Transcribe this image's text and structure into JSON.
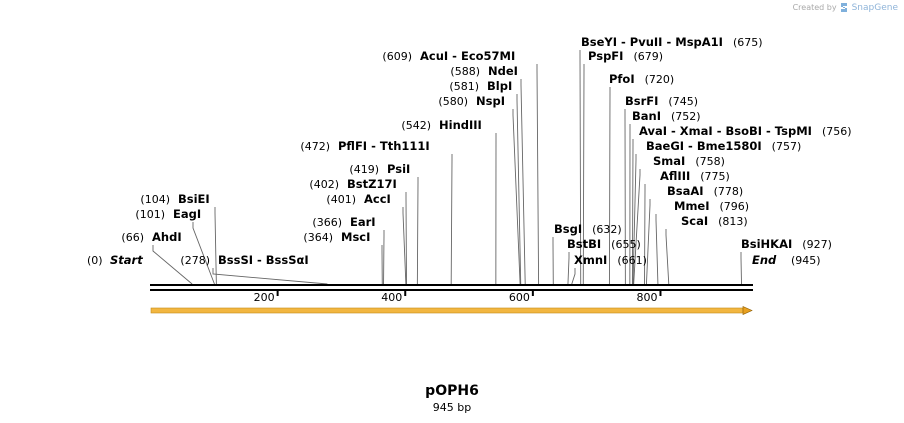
{
  "credit": {
    "created_by": "Created by",
    "brand": "SnapGene",
    "icon": "snapgene-logo-icon"
  },
  "sequence": {
    "name": "pOPH6",
    "length_label": "945 bp",
    "length": 945
  },
  "ends": {
    "start": {
      "label": "Start",
      "pos": "(0)"
    },
    "end": {
      "label": "End",
      "pos": "(945)"
    }
  },
  "ruler": {
    "ticks": [
      "200",
      "400",
      "600",
      "800"
    ]
  },
  "feature": {
    "color": "#e8a020",
    "direction": "forward"
  },
  "sites": [
    {
      "id": "ahdi",
      "label": "AhdI",
      "pos": "(66)",
      "loc": 66
    },
    {
      "id": "eagi",
      "label": "EagI",
      "pos": "(101)",
      "loc": 101
    },
    {
      "id": "bsiei",
      "label": "BsiEI",
      "pos": "(104)",
      "loc": 104
    },
    {
      "id": "bsssi",
      "label": "BssSI - BssSαI",
      "pos": "(278)",
      "loc": 278
    },
    {
      "id": "msci",
      "label": "MscI",
      "pos": "(364)",
      "loc": 364
    },
    {
      "id": "eari",
      "label": "EarI",
      "pos": "(366)",
      "loc": 366
    },
    {
      "id": "acci",
      "label": "AccI",
      "pos": "(401)",
      "loc": 401
    },
    {
      "id": "bstz17i",
      "label": "BstZ17I",
      "pos": "(402)",
      "loc": 402
    },
    {
      "id": "psii",
      "label": "PsiI",
      "pos": "(419)",
      "loc": 419
    },
    {
      "id": "pflfi",
      "label": "PflFI - Tth111I",
      "pos": "(472)",
      "loc": 472
    },
    {
      "id": "hindiii",
      "label": "HindIII",
      "pos": "(542)",
      "loc": 542
    },
    {
      "id": "nspi",
      "label": "NspI",
      "pos": "(580)",
      "loc": 580
    },
    {
      "id": "blpi",
      "label": "BlpI",
      "pos": "(581)",
      "loc": 581
    },
    {
      "id": "ndei",
      "label": "NdeI",
      "pos": "(588)",
      "loc": 588
    },
    {
      "id": "acui",
      "label": "AcuI - Eco57MI",
      "pos": "(609)",
      "loc": 609
    },
    {
      "id": "bsgi",
      "label": "BsgI",
      "pos": "(632)",
      "loc": 632
    },
    {
      "id": "bstbi",
      "label": "BstBI",
      "pos": "(655)",
      "loc": 655
    },
    {
      "id": "xmni",
      "label": "XmnI",
      "pos": "(661)",
      "loc": 661
    },
    {
      "id": "bseyi",
      "label": "BseYI - PvuII - MspA1I",
      "pos": "(675)",
      "loc": 675
    },
    {
      "id": "pspfi",
      "label": "PspFI",
      "pos": "(679)",
      "loc": 679
    },
    {
      "id": "pfoi",
      "label": "PfoI",
      "pos": "(720)",
      "loc": 720
    },
    {
      "id": "bsrfi",
      "label": "BsrFI",
      "pos": "(745)",
      "loc": 745
    },
    {
      "id": "bani",
      "label": "BanI",
      "pos": "(752)",
      "loc": 752
    },
    {
      "id": "avai",
      "label": "AvaI - XmaI - BsoBI - TspMI",
      "pos": "(756)",
      "loc": 756
    },
    {
      "id": "baegi",
      "label": "BaeGI - Bme1580I",
      "pos": "(757)",
      "loc": 757
    },
    {
      "id": "smai",
      "label": "SmaI",
      "pos": "(758)",
      "loc": 758
    },
    {
      "id": "afliii",
      "label": "AflIII",
      "pos": "(775)",
      "loc": 775
    },
    {
      "id": "bsaai",
      "label": "BsaAI",
      "pos": "(778)",
      "loc": 778
    },
    {
      "id": "mmei",
      "label": "MmeI",
      "pos": "(796)",
      "loc": 796
    },
    {
      "id": "scai",
      "label": "ScaI",
      "pos": "(813)",
      "loc": 813
    },
    {
      "id": "bsihkai",
      "label": "BsiHKAI",
      "pos": "(927)",
      "loc": 927
    }
  ]
}
